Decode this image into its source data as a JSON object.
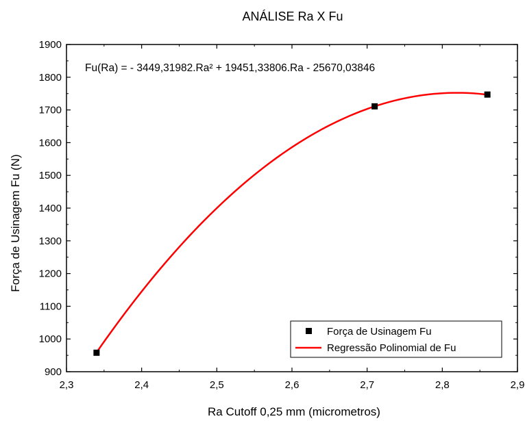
{
  "chart_data": {
    "type": "scatter",
    "title": "ANÁLISE Ra X Fu",
    "xlabel": "Ra Cutoff 0,25 mm (micrometros)",
    "ylabel": "Força de Usinagem Fu (N)",
    "xlim": [
      2.3,
      2.9
    ],
    "ylim": [
      900,
      1900
    ],
    "x_ticks": [
      "2,3",
      "2,4",
      "2,5",
      "2,6",
      "2,7",
      "2,8",
      "2,9"
    ],
    "y_ticks": [
      "900",
      "1000",
      "1100",
      "1200",
      "1300",
      "1400",
      "1500",
      "1600",
      "1700",
      "1800",
      "1900"
    ],
    "grid": false,
    "annotation": "Fu(Ra) = - 3449,31982.Ra² +  19451,33806.Ra - 25670,03846",
    "legend_position": "bottom-right",
    "series": [
      {
        "name": "Força de Usinagem Fu",
        "kind": "scatter",
        "marker": "square",
        "color": "#000000",
        "x": [
          2.34,
          2.71,
          2.86
        ],
        "y": [
          958,
          1711,
          1747
        ]
      },
      {
        "name": "Regressão Polinomial de Fu",
        "kind": "line",
        "color": "#ff0000",
        "coefficients": [
          -3449.31982,
          19451.33806,
          -25670.03846
        ],
        "x_range": [
          2.34,
          2.86
        ]
      }
    ]
  }
}
